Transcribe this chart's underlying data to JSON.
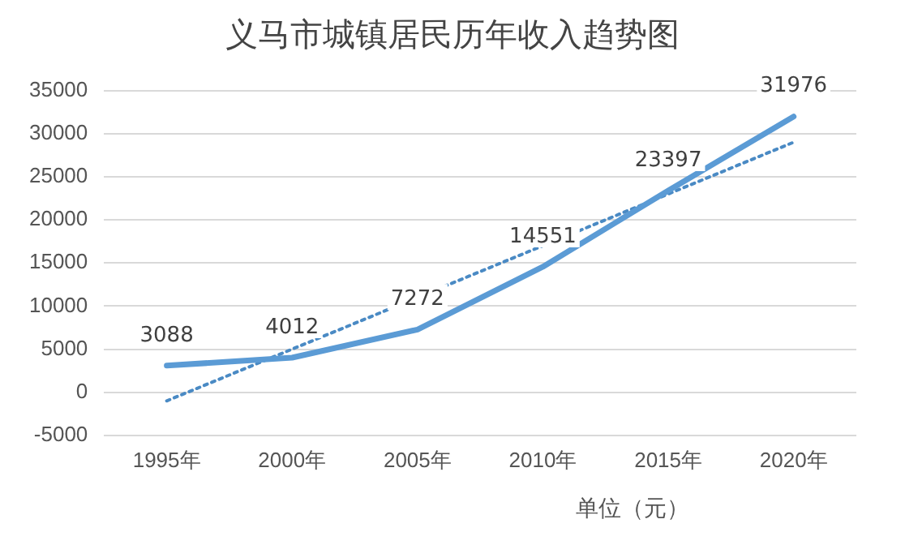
{
  "chart_data": {
    "type": "line",
    "title": "义马市城镇居民历年收入趋势图",
    "categories": [
      "1995年",
      "2000年",
      "2005年",
      "2010年",
      "2015年",
      "2020年"
    ],
    "series": [
      {
        "color": "#5b9bd5",
        "values": [
          3088,
          4012,
          7272,
          14551,
          23397,
          31976
        ],
        "value_labels": [
          "3088",
          "4012",
          "7272",
          "14551",
          "23397",
          "31976"
        ]
      },
      {
        "type": "line",
        "color": "#4a8ac4",
        "x": [
          "1995年",
          "2020年"
        ],
        "values": [
          -1000,
          29000
        ],
        "line_style": "dotted"
      }
    ],
    "ylim": [
      -5000,
      35000
    ],
    "yticks": [
      -5000,
      0,
      5000,
      10000,
      15000,
      20000,
      25000,
      30000,
      35000
    ],
    "grid": "y",
    "legend": false,
    "marker": "none",
    "annotations": [
      "单位（元）"
    ]
  }
}
